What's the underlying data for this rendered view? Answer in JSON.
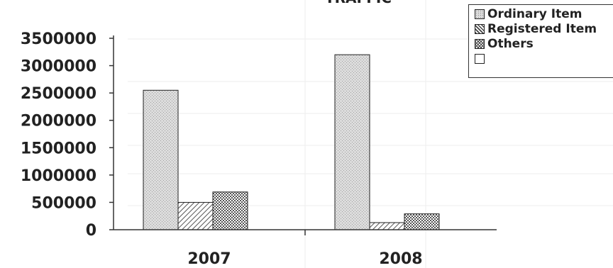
{
  "chart_data": {
    "type": "bar",
    "title": "TRAFFIC",
    "categories": [
      "2007",
      "2008"
    ],
    "series": [
      {
        "name": "Ordinary Item",
        "values": [
          2550000,
          3200000
        ]
      },
      {
        "name": "Registered Item",
        "values": [
          500000,
          130000
        ]
      },
      {
        "name": "Others",
        "values": [
          690000,
          290000
        ]
      },
      {
        "name": "",
        "values": [
          0,
          0
        ]
      }
    ],
    "yticks": [
      "0",
      "500000",
      "1000000",
      "1500000",
      "2000000",
      "2500000",
      "3000000",
      "3500000"
    ],
    "ylim": [
      0,
      3500000
    ],
    "xlabel": "",
    "ylabel": "",
    "grid": false,
    "legend_position": "top-right"
  },
  "colors": {
    "ordinary": "#d4d4d4",
    "registered": "#bdbdbd",
    "others": "#a8a8a8",
    "axis": "#333333"
  }
}
